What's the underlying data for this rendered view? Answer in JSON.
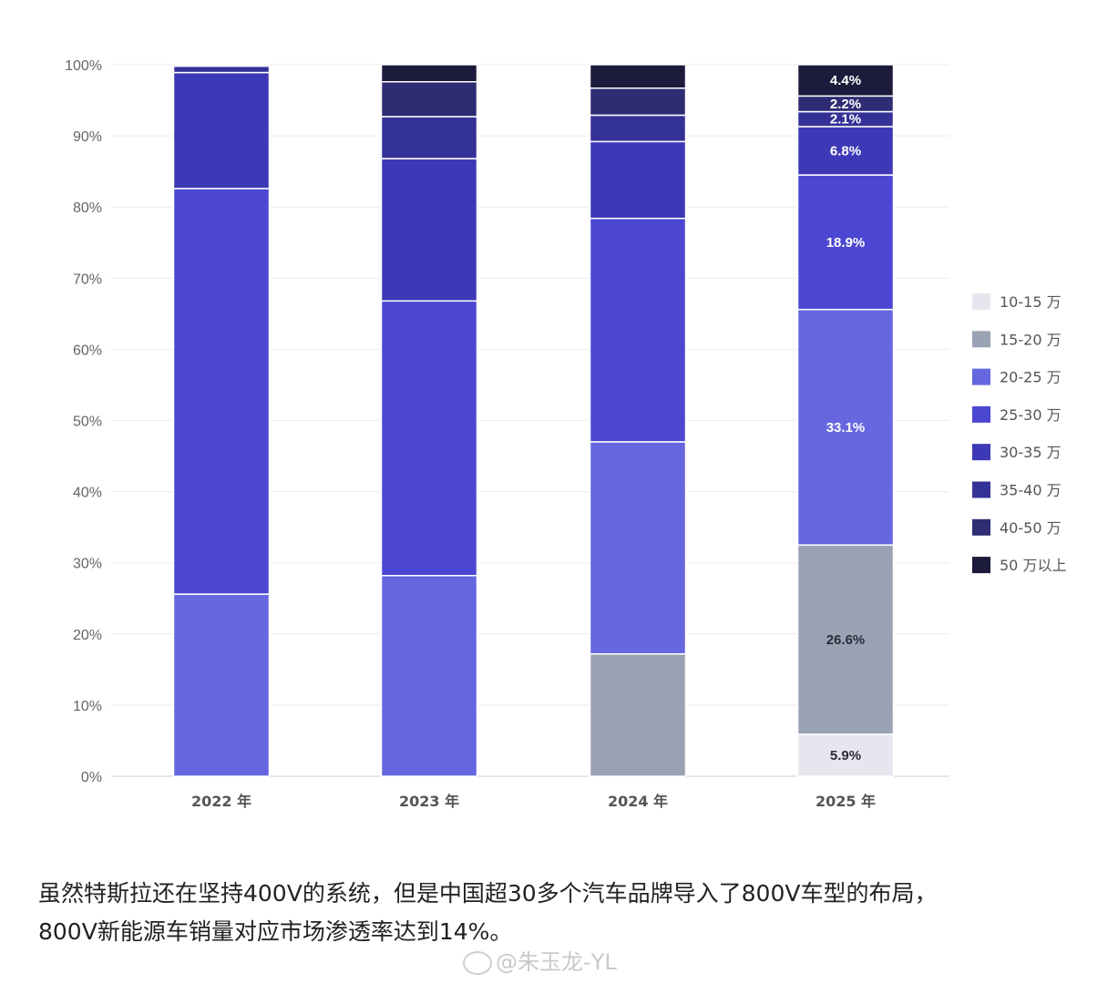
{
  "chart_data": {
    "type": "bar",
    "stacked": true,
    "categories": [
      "2022 年",
      "2023 年",
      "2024 年",
      "2025 年"
    ],
    "yticks": [
      "0%",
      "10%",
      "20%",
      "30%",
      "40%",
      "50%",
      "60%",
      "70%",
      "80%",
      "90%",
      "100%"
    ],
    "ylim": [
      0,
      100
    ],
    "grid": true,
    "legend_position": "right",
    "series": [
      {
        "name": "10-15 万",
        "color": "#e6e7ee",
        "values": [
          0,
          0,
          0,
          5.9
        ]
      },
      {
        "name": "15-20 万",
        "color": "#9aa3b3",
        "values": [
          0,
          0,
          17.2,
          26.6
        ]
      },
      {
        "name": "20-25 万",
        "color": "#6666e0",
        "values": [
          25.6,
          28.2,
          29.8,
          33.1
        ]
      },
      {
        "name": "25-30 万",
        "color": "#4b47d2",
        "values": [
          57.0,
          38.6,
          31.4,
          18.9
        ]
      },
      {
        "name": "30-35 万",
        "color": "#3c38b6",
        "values": [
          16.3,
          20.0,
          10.8,
          6.8
        ]
      },
      {
        "name": "35-40 万",
        "color": "#343196",
        "values": [
          0.9,
          5.9,
          3.7,
          2.1
        ]
      },
      {
        "name": "40-50 万",
        "color": "#2e2c73",
        "values": [
          0,
          4.9,
          3.8,
          2.2
        ]
      },
      {
        "name": "50 万以上",
        "color": "#1c1b3c",
        "values": [
          0.2,
          2.4,
          3.3,
          4.4
        ]
      }
    ],
    "data_labels": [
      {
        "category_index": 3,
        "series_index": 0,
        "text": "5.9%"
      },
      {
        "category_index": 3,
        "series_index": 1,
        "text": "26.6%"
      },
      {
        "category_index": 3,
        "series_index": 2,
        "text": "33.1%"
      },
      {
        "category_index": 3,
        "series_index": 3,
        "text": "18.9%"
      },
      {
        "category_index": 3,
        "series_index": 4,
        "text": "6.8%"
      },
      {
        "category_index": 3,
        "series_index": 5,
        "text": "2.1%"
      },
      {
        "category_index": 3,
        "series_index": 6,
        "text": "2.2%"
      },
      {
        "category_index": 3,
        "series_index": 7,
        "text": "4.4%"
      }
    ]
  },
  "caption": {
    "line1": "虽然特斯拉还在坚持400V的系统，但是中国超30多个汽车品牌导入了800V车型的布局，",
    "line2": "800V新能源车销量对应市场渗透率达到14%。"
  },
  "watermark": "@朱玉龙-YL"
}
